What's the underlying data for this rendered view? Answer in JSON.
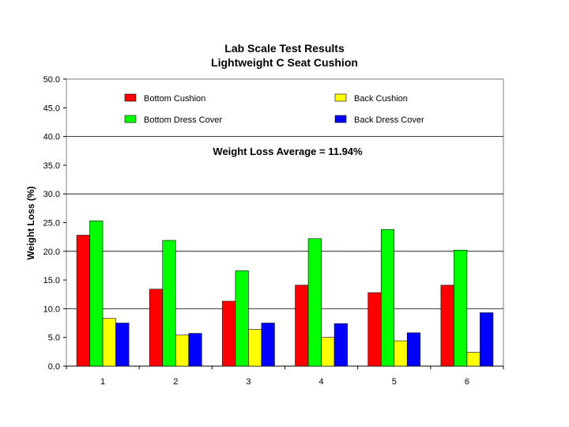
{
  "chart_data": {
    "type": "bar",
    "title": [
      "Lab Scale Test Results",
      "Lightweight C Seat Cushion"
    ],
    "xlabel": "",
    "ylabel": "Weight Loss (%)",
    "ylim": [
      0,
      50
    ],
    "ytick_step": 5,
    "ytick_labels": [
      "0.0",
      "5.0",
      "10.0",
      "15.0",
      "20.0",
      "25.0",
      "30.0",
      "35.0",
      "40.0",
      "45.0",
      "50.0"
    ],
    "grid": "y-major-every-10",
    "categories": [
      "1",
      "2",
      "3",
      "4",
      "5",
      "6"
    ],
    "series": [
      {
        "name": "Bottom Cushion",
        "color": "#ff0000",
        "values": [
          22.8,
          13.4,
          11.3,
          14.1,
          12.8,
          14.1
        ]
      },
      {
        "name": "Bottom Dress Cover",
        "color": "#00ff00",
        "values": [
          25.3,
          21.9,
          16.6,
          22.2,
          23.8,
          20.2
        ]
      },
      {
        "name": "Back Cushion",
        "color": "#ffff00",
        "values": [
          8.3,
          5.4,
          6.4,
          5.0,
          4.4,
          2.4
        ]
      },
      {
        "name": "Back Dress Cover",
        "color": "#0000ff",
        "values": [
          7.5,
          5.7,
          7.5,
          7.4,
          5.8,
          9.3
        ]
      }
    ],
    "legend": {
      "placement": "top-inside"
    },
    "annotation": "Weight Loss Average = 11.94%"
  }
}
